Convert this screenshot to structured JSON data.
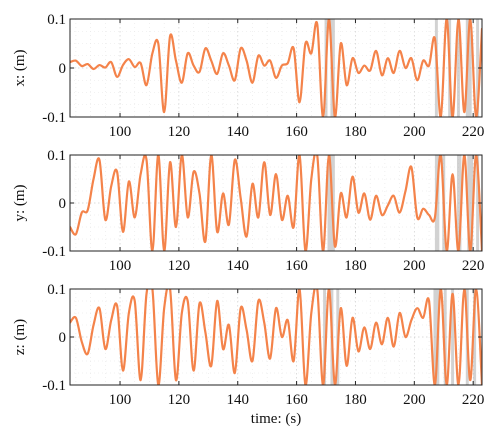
{
  "chart_data": [
    {
      "type": "line",
      "ylabel": "x: (m)",
      "xlabel": "",
      "xlim": [
        83,
        223
      ],
      "ylim": [
        -0.1,
        0.1
      ],
      "xticks": [
        100,
        120,
        140,
        160,
        180,
        200,
        220
      ],
      "yticks": [
        -0.1,
        0,
        0.1
      ],
      "ytick_labels": [
        "-0.1",
        "0",
        "0.1"
      ],
      "grid": true,
      "color": "#F4834A",
      "shaded_intervals": [
        [
          169.5,
          170.5
        ],
        [
          171.5,
          173.0
        ],
        [
          207.0,
          208.0
        ],
        [
          211.5,
          212.5
        ],
        [
          214.5,
          215.5
        ],
        [
          217.5,
          219.5
        ],
        [
          221.0,
          222.0
        ]
      ],
      "series": [
        {
          "x": [
            83,
            85,
            87,
            89,
            91,
            93,
            95,
            97,
            99,
            101,
            103,
            105,
            107,
            109,
            111,
            113,
            115,
            117,
            119,
            121,
            123,
            125,
            127,
            129,
            131,
            133,
            135,
            137,
            139,
            141,
            143,
            145,
            147,
            149,
            151,
            153,
            155,
            157,
            159,
            161,
            163,
            165,
            167,
            169,
            171,
            173,
            175,
            177,
            179,
            181,
            183,
            185,
            187,
            189,
            191,
            193,
            195,
            197,
            199,
            201,
            203,
            205,
            207,
            209,
            211,
            213,
            215,
            217,
            219,
            221,
            223
          ],
          "y": [
            0.012,
            0.015,
            0.004,
            0.008,
            -0.002,
            0.006,
            0.001,
            0.012,
            -0.018,
            0.006,
            0.018,
            0.002,
            0.01,
            -0.035,
            0.03,
            0.05,
            -0.09,
            0.065,
            0.015,
            -0.03,
            0.03,
            0.005,
            -0.008,
            0.04,
            0.015,
            -0.012,
            0.03,
            0.005,
            -0.025,
            0.04,
            0.015,
            -0.03,
            0.025,
            0.005,
            0.015,
            -0.02,
            0.005,
            0.01,
            0.04,
            -0.07,
            0.05,
            0.03,
            0.09,
            -0.1,
            0.1,
            -0.1,
            0.05,
            -0.035,
            0.02,
            -0.01,
            0.005,
            -0.005,
            0.035,
            -0.015,
            0.02,
            -0.01,
            0.035,
            0.0,
            0.02,
            -0.025,
            0.015,
            0.005,
            0.06,
            -0.1,
            0.1,
            -0.1,
            0.1,
            -0.09,
            0.1,
            -0.1,
            0.08
          ]
        }
      ]
    },
    {
      "type": "line",
      "ylabel": "y: (m)",
      "xlabel": "",
      "xlim": [
        83,
        223
      ],
      "ylim": [
        -0.1,
        0.1
      ],
      "xticks": [
        100,
        120,
        140,
        160,
        180,
        200,
        220
      ],
      "yticks": [
        -0.1,
        0,
        0.1
      ],
      "ytick_labels": [
        "-0.1",
        "0",
        "0.1"
      ],
      "grid": true,
      "color": "#F4834A",
      "shaded_intervals": [
        [
          170.5,
          173.0
        ],
        [
          207.0,
          208.5
        ],
        [
          209.5,
          210.5
        ],
        [
          214.5,
          216.0
        ],
        [
          218.0,
          220.0
        ],
        [
          221.0,
          222.0
        ]
      ],
      "series": [
        {
          "x": [
            83,
            85,
            87,
            89,
            91,
            93,
            95,
            97,
            99,
            101,
            103,
            105,
            107,
            109,
            111,
            113,
            115,
            117,
            119,
            121,
            123,
            125,
            127,
            129,
            131,
            133,
            135,
            137,
            139,
            141,
            143,
            145,
            147,
            149,
            151,
            153,
            155,
            157,
            159,
            161,
            163,
            165,
            167,
            169,
            171,
            173,
            175,
            177,
            179,
            181,
            183,
            185,
            187,
            189,
            191,
            193,
            195,
            197,
            199,
            201,
            203,
            205,
            207,
            209,
            211,
            213,
            215,
            217,
            219,
            221,
            223
          ],
          "y": [
            -0.05,
            -0.065,
            -0.02,
            -0.015,
            0.05,
            0.09,
            -0.035,
            0.035,
            0.065,
            -0.06,
            0.045,
            -0.03,
            0.06,
            0.09,
            -0.1,
            0.1,
            -0.1,
            0.085,
            -0.05,
            0.1,
            -0.03,
            0.065,
            0.02,
            -0.08,
            0.1,
            -0.06,
            0.02,
            -0.045,
            0.09,
            0.01,
            -0.07,
            0.04,
            -0.03,
            0.085,
            -0.025,
            0.06,
            -0.035,
            0.015,
            -0.05,
            0.1,
            -0.1,
            0.05,
            0.1,
            -0.1,
            0.1,
            -0.09,
            0.02,
            -0.03,
            0.055,
            -0.02,
            0.02,
            -0.035,
            0.015,
            -0.025,
            -0.005,
            0.015,
            -0.02,
            0.025,
            0.075,
            -0.03,
            -0.012,
            -0.025,
            -0.03,
            0.1,
            -0.1,
            0.06,
            -0.1,
            0.1,
            -0.1,
            0.1,
            -0.1
          ]
        }
      ]
    },
    {
      "type": "line",
      "ylabel": "z: (m)",
      "xlabel": "time: (s)",
      "xlim": [
        83,
        223
      ],
      "ylim": [
        -0.1,
        0.1
      ],
      "xticks": [
        100,
        120,
        140,
        160,
        180,
        200,
        220
      ],
      "yticks": [
        -0.1,
        0,
        0.1
      ],
      "ytick_labels": [
        "-0.1",
        "0",
        "0.1"
      ],
      "grid": true,
      "color": "#F4834A",
      "shaded_intervals": [
        [
          169.0,
          170.0
        ],
        [
          171.5,
          172.5
        ],
        [
          173.5,
          174.5
        ],
        [
          206.5,
          208.5
        ],
        [
          210.0,
          211.0
        ],
        [
          212.5,
          213.5
        ],
        [
          217.5,
          218.5
        ],
        [
          220.0,
          221.0
        ]
      ],
      "series": [
        {
          "x": [
            83,
            85,
            87,
            89,
            91,
            93,
            95,
            97,
            99,
            101,
            103,
            105,
            107,
            109,
            111,
            113,
            115,
            117,
            119,
            121,
            123,
            125,
            127,
            129,
            131,
            133,
            135,
            137,
            139,
            141,
            143,
            145,
            147,
            149,
            151,
            153,
            155,
            157,
            159,
            161,
            163,
            165,
            167,
            169,
            171,
            173,
            175,
            177,
            179,
            181,
            183,
            185,
            187,
            189,
            191,
            193,
            195,
            197,
            199,
            201,
            203,
            205,
            207,
            209,
            211,
            213,
            215,
            217,
            219,
            221,
            223
          ],
          "y": [
            0.03,
            0.04,
            -0.01,
            -0.035,
            0.025,
            0.06,
            -0.025,
            0.035,
            0.065,
            -0.07,
            0.05,
            0.075,
            -0.09,
            0.09,
            0.1,
            -0.1,
            0.06,
            0.1,
            -0.09,
            0.05,
            0.075,
            -0.07,
            0.07,
            0.01,
            -0.06,
            0.075,
            -0.025,
            0.025,
            -0.075,
            0.06,
            0.015,
            -0.05,
            0.075,
            0.03,
            -0.045,
            0.06,
            0.0,
            0.035,
            -0.05,
            0.1,
            -0.1,
            0.05,
            0.1,
            -0.1,
            0.1,
            -0.1,
            0.06,
            -0.06,
            0.04,
            -0.03,
            0.02,
            -0.025,
            0.03,
            -0.015,
            0.04,
            -0.02,
            0.05,
            0.0,
            0.035,
            0.06,
            0.04,
            0.075,
            -0.1,
            0.1,
            -0.1,
            0.09,
            -0.1,
            0.1,
            -0.09,
            0.1,
            -0.1
          ]
        }
      ]
    }
  ]
}
